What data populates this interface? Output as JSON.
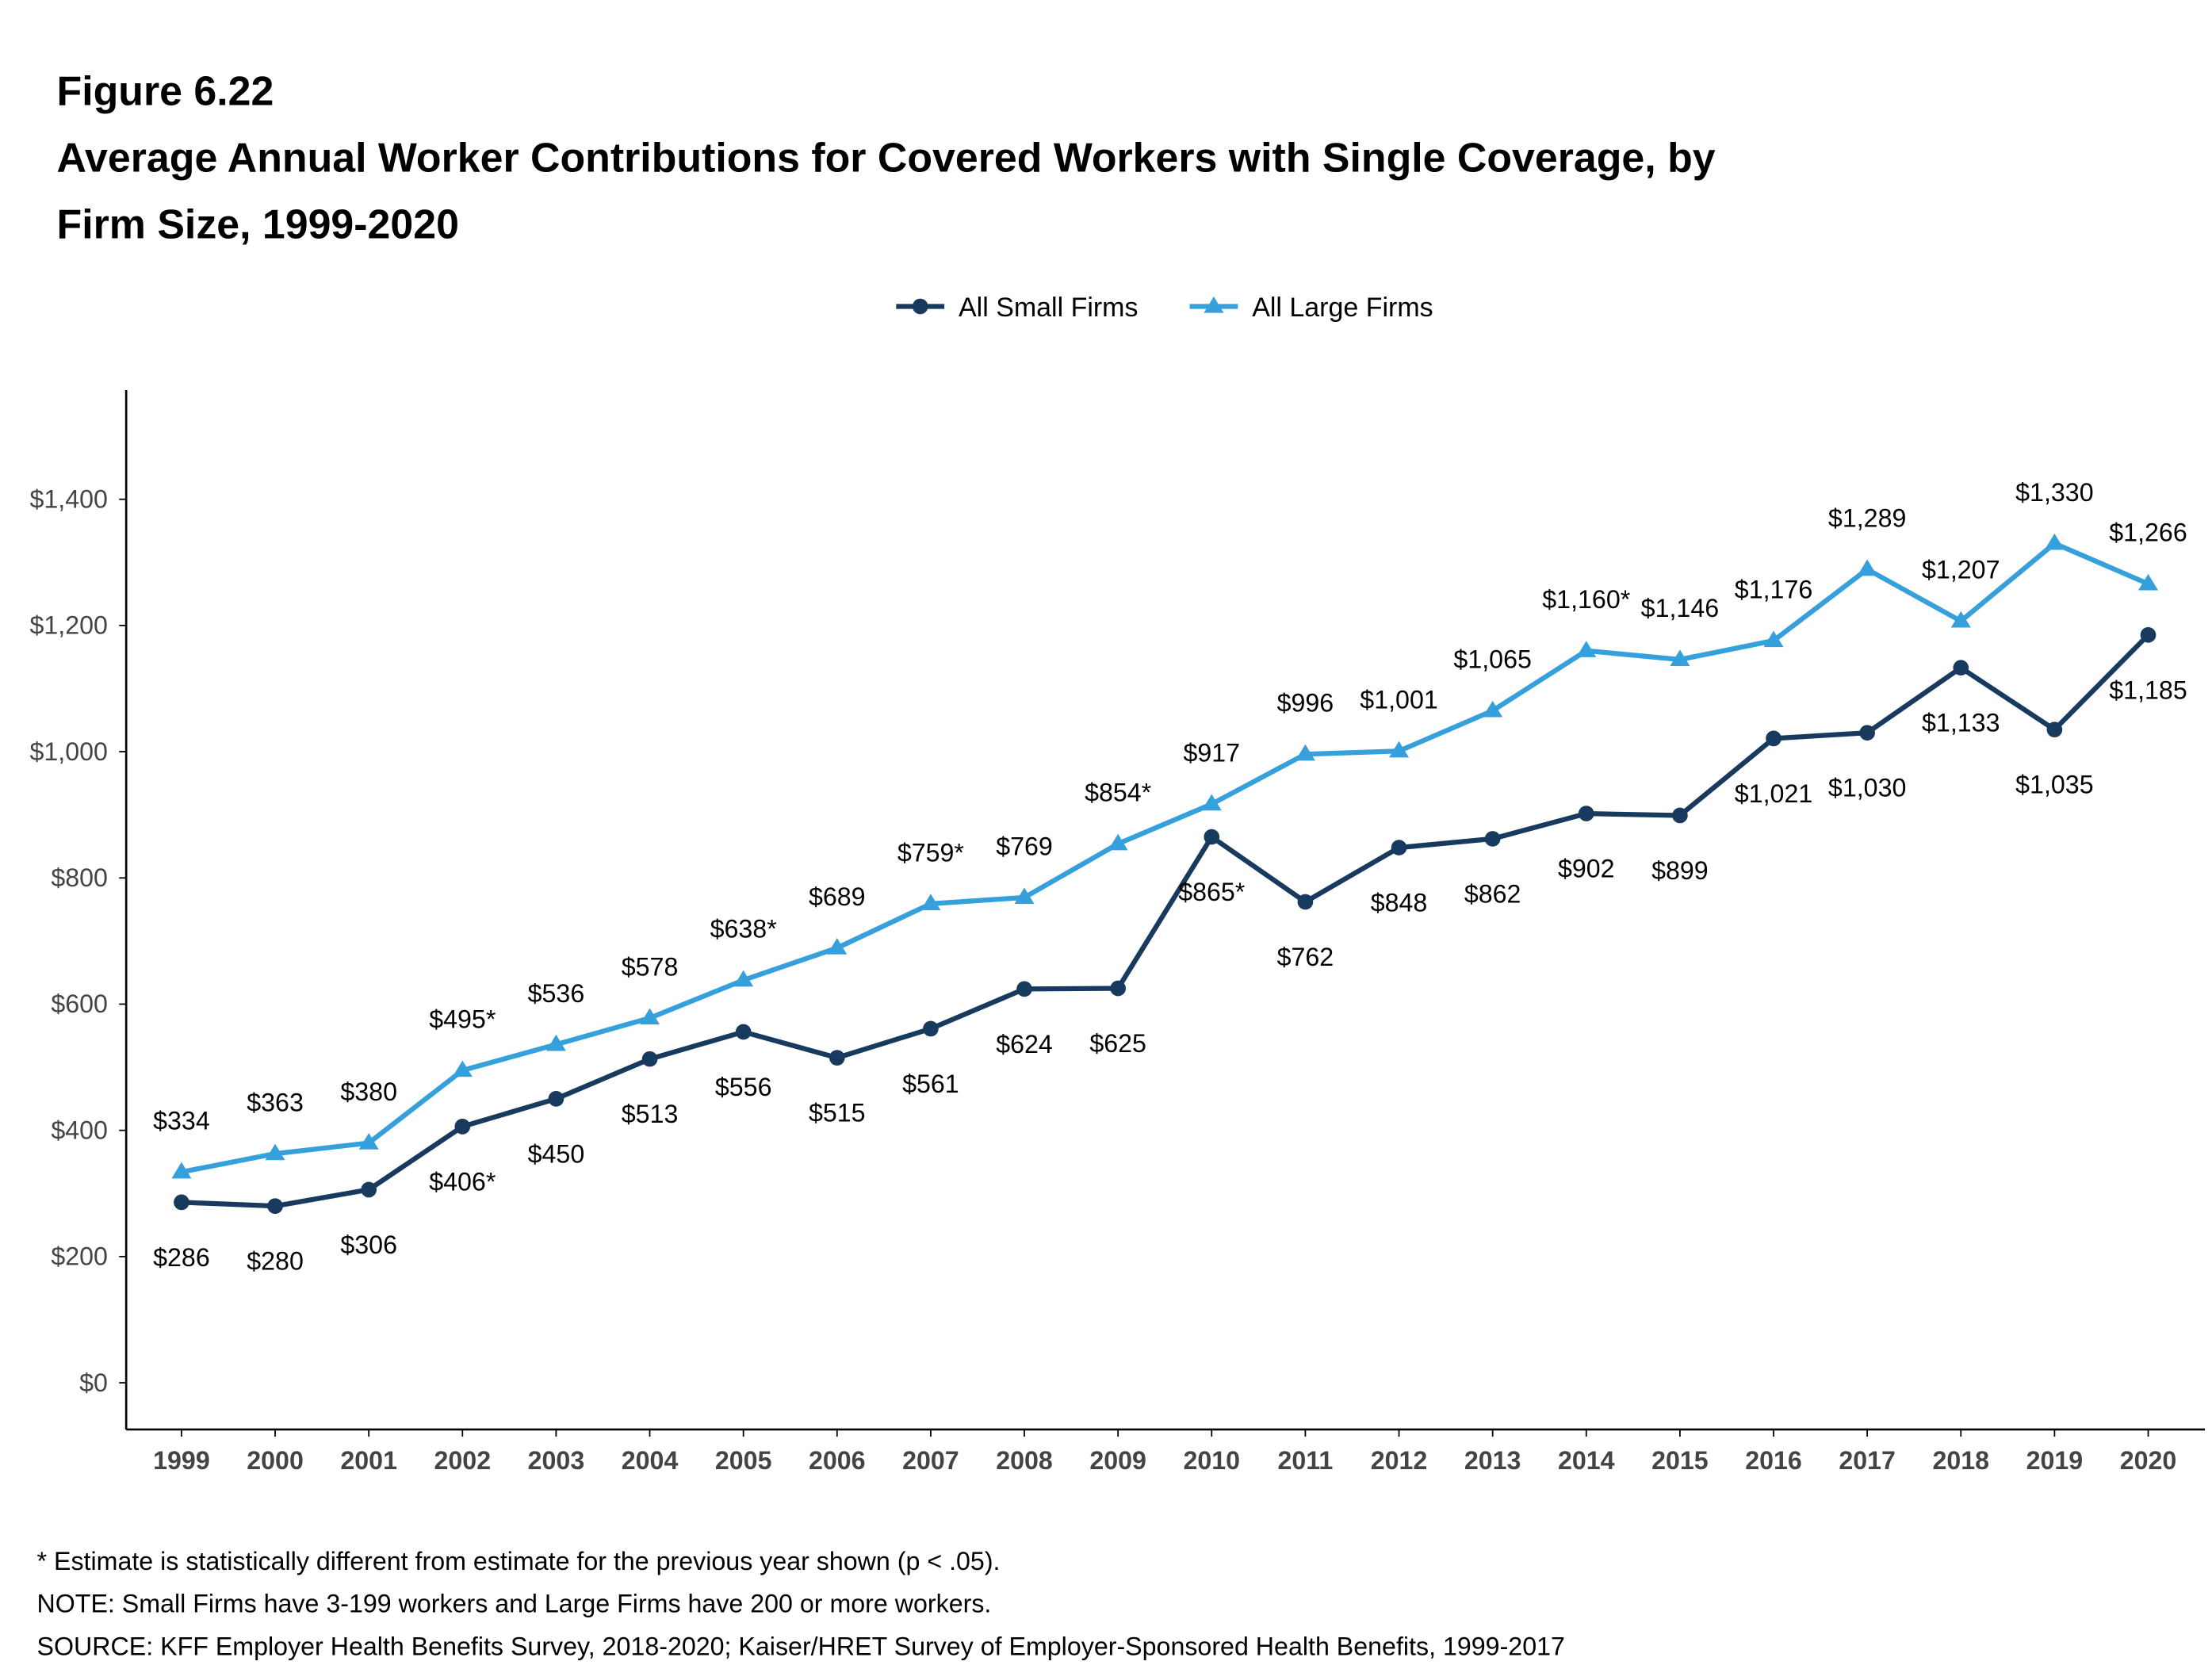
{
  "chart_data": {
    "type": "line",
    "figure_label": "Figure 6.22",
    "title": "Average Annual Worker Contributions for Covered Workers with Single Coverage, by Firm Size, 1999-2020",
    "categories": [
      "1999",
      "2000",
      "2001",
      "2002",
      "2003",
      "2004",
      "2005",
      "2006",
      "2007",
      "2008",
      "2009",
      "2010",
      "2011",
      "2012",
      "2013",
      "2014",
      "2015",
      "2016",
      "2017",
      "2018",
      "2019",
      "2020"
    ],
    "series": [
      {
        "name": "All Small Firms",
        "color": "#173a5e",
        "marker": "circle",
        "label_side": "below",
        "values": [
          286,
          280,
          306,
          406,
          450,
          513,
          556,
          515,
          561,
          624,
          625,
          865,
          762,
          848,
          862,
          902,
          899,
          1021,
          1030,
          1133,
          1035,
          1185
        ],
        "value_labels": [
          "$286",
          "$280",
          "$306",
          "$406*",
          "$450",
          "$513",
          "$556",
          "$515",
          "$561",
          "$624",
          "$625",
          "$865*",
          "$762",
          "$848",
          "$862",
          "$902",
          "$899",
          "$1,021",
          "$1,030",
          "$1,133",
          "$1,035",
          "$1,185"
        ]
      },
      {
        "name": "All Large Firms",
        "color": "#35a0dc",
        "marker": "triangle",
        "label_side": "above",
        "values": [
          334,
          363,
          380,
          495,
          536,
          578,
          638,
          689,
          759,
          769,
          854,
          917,
          996,
          1001,
          1065,
          1160,
          1146,
          1176,
          1289,
          1207,
          1330,
          1266
        ],
        "value_labels": [
          "$334",
          "$363",
          "$380",
          "$495*",
          "$536",
          "$578",
          "$638*",
          "$689",
          "$759*",
          "$769",
          "$854*",
          "$917",
          "$996",
          "$1,001",
          "$1,065",
          "$1,160*",
          "$1,146",
          "$1,176",
          "$1,289",
          "$1,207",
          "$1,330",
          "$1,266"
        ]
      }
    ],
    "ylim": [
      -74,
      1573
    ],
    "yticks": [
      {
        "value": 0,
        "label": "$0"
      },
      {
        "value": 200,
        "label": "$200"
      },
      {
        "value": 400,
        "label": "$400"
      },
      {
        "value": 600,
        "label": "$600"
      },
      {
        "value": 800,
        "label": "$800"
      },
      {
        "value": 1000,
        "label": "$1,000"
      },
      {
        "value": 1200,
        "label": "$1,200"
      },
      {
        "value": 1400,
        "label": "$1,400"
      }
    ],
    "grid": false,
    "legend": "top",
    "notes": [
      "* Estimate is statistically different from estimate for the previous year shown (p < .05).",
      "NOTE: Small Firms have 3-199 workers and Large Firms have 200 or more workers.",
      "SOURCE: KFF Employer Health Benefits Survey, 2018-2020; Kaiser/HRET Survey of Employer-Sponsored Health Benefits, 1999-2017"
    ]
  }
}
